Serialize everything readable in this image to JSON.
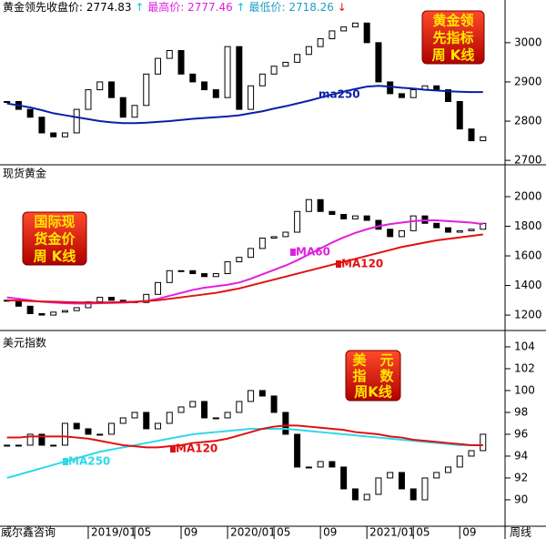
{
  "x_axis": {
    "x": [
      5,
      6,
      7,
      8,
      9,
      10,
      11,
      12,
      13,
      14,
      15,
      16,
      17,
      18,
      19,
      20,
      21,
      22,
      23,
      24,
      25,
      26,
      27,
      28,
      29,
      30,
      31,
      32,
      33,
      34,
      35,
      36,
      37,
      38,
      39,
      40,
      41,
      42,
      43,
      44,
      45,
      46
    ],
    "xlim": [
      4.4,
      47.9
    ],
    "xticks": [
      {
        "value": 12,
        "label": "2019/01"
      },
      {
        "value": 16,
        "label": "05"
      },
      {
        "value": 20,
        "label": "09"
      },
      {
        "value": 24,
        "label": "2020/01"
      },
      {
        "value": 28,
        "label": "05"
      },
      {
        "value": 32,
        "label": "09"
      },
      {
        "value": 36,
        "label": "2021/01"
      },
      {
        "value": 40,
        "label": "05"
      },
      {
        "value": 44,
        "label": "09"
      }
    ],
    "source": "威尔鑫咨询",
    "period": "周线"
  },
  "chart_data": [
    {
      "type": "candlestick",
      "header": {
        "close_label": "黄金领先收盘价:",
        "close": 2774.83,
        "close_arrow": "↑",
        "high_label": "最高价:",
        "high": 2777.46,
        "high_arrow": "↑",
        "low_label": "最低价:",
        "low": 2718.26,
        "low_arrow": "↓"
      },
      "label_box": [
        "黄金领",
        "先指标",
        "周 K线"
      ],
      "ylim": [
        2691,
        3067
      ],
      "yticks": [
        2700,
        2800,
        2900,
        3000
      ],
      "series": [
        {
          "color": "#000000",
          "values": [
            2850,
            2830,
            2810,
            2770,
            2760,
            2770,
            2830,
            2880,
            2900,
            2860,
            2810,
            2840,
            2920,
            2960,
            2980,
            2920,
            2900,
            2880,
            2860,
            2990,
            2830,
            2890,
            2920,
            2940,
            2950,
            2970,
            2990,
            3010,
            3030,
            3040,
            3050,
            3000,
            2900,
            2870,
            2860,
            2880,
            2890,
            2880,
            2850,
            2780,
            2750,
            2760
          ]
        },
        {
          "name": "ma250",
          "color": "#0a1fa8",
          "values": [
            2845,
            2840,
            2835,
            2828,
            2820,
            2815,
            2810,
            2805,
            2800,
            2797,
            2795,
            2795,
            2796,
            2798,
            2800,
            2803,
            2806,
            2808,
            2810,
            2812,
            2815,
            2820,
            2825,
            2832,
            2838,
            2845,
            2852,
            2860,
            2868,
            2875,
            2882,
            2888,
            2890,
            2888,
            2885,
            2883,
            2880,
            2878,
            2876,
            2875,
            2874,
            2874
          ]
        }
      ]
    },
    {
      "type": "candlestick",
      "title": "现货黄金",
      "label_box": [
        "国际现",
        "货金价",
        "周 K线"
      ],
      "ylim": [
        1102,
        2203
      ],
      "yticks": [
        1200,
        1400,
        1600,
        1800,
        2000
      ],
      "series": [
        {
          "color": "#000000",
          "values": [
            1300,
            1260,
            1210,
            1200,
            1220,
            1230,
            1250,
            1290,
            1320,
            1300,
            1290,
            1285,
            1340,
            1420,
            1500,
            1500,
            1480,
            1460,
            1480,
            1560,
            1590,
            1650,
            1720,
            1730,
            1760,
            1900,
            1980,
            1900,
            1880,
            1850,
            1870,
            1840,
            1780,
            1730,
            1770,
            1870,
            1820,
            1790,
            1760,
            1770,
            1780,
            1820
          ]
        },
        {
          "name": "MA60",
          "color": "#e020e0",
          "values": [
            1320,
            1310,
            1300,
            1290,
            1285,
            1280,
            1278,
            1278,
            1280,
            1282,
            1284,
            1288,
            1295,
            1310,
            1330,
            1350,
            1370,
            1385,
            1395,
            1405,
            1420,
            1445,
            1475,
            1505,
            1535,
            1570,
            1610,
            1650,
            1690,
            1725,
            1755,
            1780,
            1800,
            1815,
            1825,
            1835,
            1840,
            1840,
            1835,
            1830,
            1825,
            1815
          ]
        },
        {
          "name": "MA120",
          "color": "#e01010",
          "values": [
            1300,
            1298,
            1295,
            1292,
            1290,
            1288,
            1286,
            1285,
            1285,
            1286,
            1288,
            1290,
            1295,
            1300,
            1310,
            1320,
            1330,
            1340,
            1350,
            1365,
            1380,
            1400,
            1420,
            1440,
            1460,
            1480,
            1500,
            1520,
            1540,
            1560,
            1580,
            1600,
            1620,
            1640,
            1660,
            1675,
            1690,
            1705,
            1715,
            1725,
            1735,
            1745
          ]
        }
      ]
    },
    {
      "type": "candlestick",
      "title": "美元指数",
      "label_box": [
        "美　元",
        "指　数",
        "周K线"
      ],
      "ylim": [
        87.58,
        105.33
      ],
      "yticks": [
        90,
        92,
        94,
        96,
        98,
        100,
        102,
        104
      ],
      "series": [
        {
          "color": "#000000",
          "values": [
            95,
            95,
            96,
            95,
            95,
            97,
            96.5,
            96,
            96,
            97,
            97.5,
            98,
            96.5,
            97,
            98,
            98.5,
            99,
            97.5,
            97.5,
            98,
            99,
            100,
            99.5,
            98,
            96,
            93,
            93,
            93.5,
            93,
            91,
            90,
            90.5,
            92,
            92.5,
            91,
            90,
            92,
            92.5,
            93,
            94,
            94.5,
            96
          ]
        },
        {
          "name": "MA250",
          "color": "#30d8e8",
          "values": [
            92,
            92.3,
            92.6,
            92.9,
            93.2,
            93.5,
            93.8,
            94.1,
            94.4,
            94.6,
            94.8,
            95,
            95.2,
            95.4,
            95.6,
            95.8,
            96,
            96.1,
            96.2,
            96.3,
            96.4,
            96.5,
            96.5,
            96.5,
            96.5,
            96.4,
            96.3,
            96.2,
            96.1,
            96,
            95.9,
            95.8,
            95.7,
            95.6,
            95.5,
            95.4,
            95.3,
            95.2,
            95.1,
            95,
            95,
            95
          ]
        },
        {
          "name": "MA120",
          "color": "#e01010",
          "values": [
            95.7,
            95.7,
            95.8,
            95.8,
            95.8,
            95.8,
            95.7,
            95.6,
            95.4,
            95.2,
            95,
            94.9,
            94.8,
            94.8,
            94.9,
            95,
            95.2,
            95.3,
            95.4,
            95.6,
            95.9,
            96.2,
            96.5,
            96.7,
            96.8,
            96.8,
            96.7,
            96.6,
            96.5,
            96.4,
            96.2,
            96.1,
            96,
            95.8,
            95.7,
            95.5,
            95.4,
            95.3,
            95.2,
            95.1,
            95,
            95
          ]
        }
      ]
    }
  ]
}
